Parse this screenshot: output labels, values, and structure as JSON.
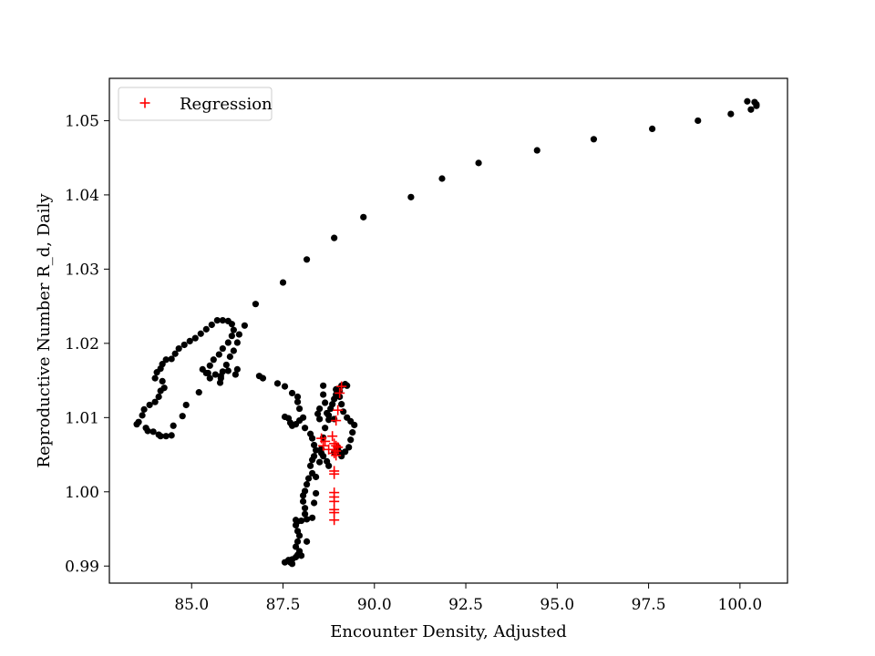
{
  "chart_data": {
    "type": "scatter",
    "xlabel": "Encounter Density, Adjusted",
    "ylabel": "Reproductive Number R_d, Daily",
    "xlim": [
      82.75,
      101.3
    ],
    "ylim": [
      0.9877,
      1.0557
    ],
    "x_ticks": [
      85.0,
      87.5,
      90.0,
      92.5,
      95.0,
      97.5,
      100.0
    ],
    "x_tick_labels": [
      "85.0",
      "87.5",
      "90.0",
      "92.5",
      "95.0",
      "97.5",
      "100.0"
    ],
    "y_ticks": [
      0.99,
      1.0,
      1.01,
      1.02,
      1.03,
      1.04,
      1.05
    ],
    "y_tick_labels": [
      "0.99",
      "1.00",
      "1.01",
      "1.02",
      "1.03",
      "1.04",
      "1.05"
    ],
    "grid": false,
    "legend": {
      "position": "top-left",
      "entries": [
        "Regression"
      ]
    },
    "series": [
      {
        "marker": "dot",
        "color": "#000000",
        "points": [
          [
            100.4,
            1.0525
          ],
          [
            100.2,
            1.0526
          ],
          [
            100.45,
            1.0522
          ],
          [
            100.3,
            1.0515
          ],
          [
            100.45,
            1.052
          ],
          [
            99.75,
            1.0509
          ],
          [
            98.85,
            1.05
          ],
          [
            97.6,
            1.0489
          ],
          [
            96.0,
            1.0475
          ],
          [
            94.45,
            1.046
          ],
          [
            92.85,
            1.0443
          ],
          [
            91.85,
            1.0422
          ],
          [
            91.0,
            1.0397
          ],
          [
            89.7,
            1.037
          ],
          [
            88.9,
            1.0342
          ],
          [
            88.15,
            1.0313
          ],
          [
            87.5,
            1.0282
          ],
          [
            86.75,
            1.0253
          ],
          [
            86.45,
            1.0224
          ],
          [
            86.3,
            1.0212
          ],
          [
            86.25,
            1.0201
          ],
          [
            86.15,
            1.019
          ],
          [
            86.05,
            1.0182
          ],
          [
            85.95,
            1.0171
          ],
          [
            85.85,
            1.0162
          ],
          [
            85.8,
            1.0156
          ],
          [
            85.78,
            1.0147
          ],
          [
            85.5,
            1.0153
          ],
          [
            85.4,
            1.016
          ],
          [
            85.3,
            1.0165
          ],
          [
            85.5,
            1.017
          ],
          [
            85.6,
            1.0178
          ],
          [
            85.75,
            1.0185
          ],
          [
            85.85,
            1.0193
          ],
          [
            86.0,
            1.0201
          ],
          [
            86.1,
            1.021
          ],
          [
            86.15,
            1.0218
          ],
          [
            86.1,
            1.0226
          ],
          [
            86.0,
            1.023
          ],
          [
            85.85,
            1.0231
          ],
          [
            85.7,
            1.0231
          ],
          [
            85.55,
            1.0225
          ],
          [
            85.4,
            1.0219
          ],
          [
            85.25,
            1.0213
          ],
          [
            85.1,
            1.0207
          ],
          [
            84.95,
            1.0203
          ],
          [
            84.8,
            1.0198
          ],
          [
            84.65,
            1.0193
          ],
          [
            84.55,
            1.0186
          ],
          [
            84.45,
            1.0179
          ],
          [
            84.3,
            1.0178
          ],
          [
            84.2,
            1.0172
          ],
          [
            84.15,
            1.0166
          ],
          [
            84.05,
            1.0161
          ],
          [
            84.0,
            1.0153
          ],
          [
            84.2,
            1.0149
          ],
          [
            84.25,
            1.014
          ],
          [
            84.15,
            1.0136
          ],
          [
            84.1,
            1.0128
          ],
          [
            84.0,
            1.0121
          ],
          [
            83.85,
            1.0117
          ],
          [
            83.7,
            1.0111
          ],
          [
            83.65,
            1.0103
          ],
          [
            83.55,
            1.0094
          ],
          [
            83.5,
            1.0091
          ],
          [
            83.75,
            1.0086
          ],
          [
            83.8,
            1.0082
          ],
          [
            83.95,
            1.0081
          ],
          [
            84.1,
            1.0077
          ],
          [
            84.15,
            1.0075
          ],
          [
            84.3,
            1.0075
          ],
          [
            84.45,
            1.0076
          ],
          [
            84.5,
            1.0089
          ],
          [
            84.75,
            1.0102
          ],
          [
            84.85,
            1.0117
          ],
          [
            85.2,
            1.0134
          ],
          [
            85.45,
            1.016
          ],
          [
            85.65,
            1.0158
          ],
          [
            85.8,
            1.0153
          ],
          [
            86.0,
            1.0163
          ],
          [
            86.2,
            1.0158
          ],
          [
            86.25,
            1.0165
          ],
          [
            86.95,
            1.0153
          ],
          [
            86.85,
            1.0156
          ],
          [
            87.35,
            1.0146
          ],
          [
            87.55,
            1.0142
          ],
          [
            87.75,
            1.0133
          ],
          [
            87.9,
            1.0128
          ],
          [
            87.9,
            1.0121
          ],
          [
            87.95,
            1.0112
          ],
          [
            88.05,
            1.01
          ],
          [
            87.95,
            1.0096
          ],
          [
            87.85,
            1.0091
          ],
          [
            87.7,
            1.0093
          ],
          [
            87.65,
            1.0099
          ],
          [
            87.55,
            1.0101
          ],
          [
            87.75,
            1.0089
          ],
          [
            88.1,
            1.0086
          ],
          [
            88.25,
            1.0078
          ],
          [
            88.3,
            1.0072
          ],
          [
            88.35,
            1.0063
          ],
          [
            88.4,
            1.0056
          ],
          [
            88.35,
            1.0048
          ],
          [
            88.3,
            1.0043
          ],
          [
            88.25,
            1.0035
          ],
          [
            88.3,
            1.0025
          ],
          [
            88.2,
            1.0018
          ],
          [
            88.15,
            1.001
          ],
          [
            88.1,
            1.0001
          ],
          [
            88.05,
            0.9995
          ],
          [
            88.05,
            0.9987
          ],
          [
            88.1,
            0.9978
          ],
          [
            88.1,
            0.997
          ],
          [
            88.15,
            0.9963
          ],
          [
            88.0,
            0.9961
          ],
          [
            87.9,
            0.996
          ],
          [
            87.85,
            0.9962
          ],
          [
            87.85,
            0.9955
          ],
          [
            87.9,
            0.9947
          ],
          [
            87.95,
            0.9941
          ],
          [
            87.9,
            0.9933
          ],
          [
            87.85,
            0.9926
          ],
          [
            87.95,
            0.992
          ],
          [
            88.0,
            0.9914
          ],
          [
            87.85,
            0.9912
          ],
          [
            87.75,
            0.9909
          ],
          [
            87.7,
            0.9905
          ],
          [
            87.75,
            0.9903
          ],
          [
            87.65,
            0.9908
          ],
          [
            87.55,
            0.9905
          ],
          [
            87.9,
            0.9915
          ],
          [
            88.15,
            0.9933
          ],
          [
            88.3,
            0.9965
          ],
          [
            88.35,
            0.9985
          ],
          [
            88.4,
            0.9998
          ],
          [
            88.4,
            1.002
          ],
          [
            88.5,
            1.004
          ],
          [
            88.55,
            1.0058
          ],
          [
            88.6,
            1.0073
          ],
          [
            88.65,
            1.0086
          ],
          [
            88.75,
            1.0097
          ],
          [
            88.7,
            1.0106
          ],
          [
            88.65,
            1.012
          ],
          [
            88.6,
            1.0131
          ],
          [
            88.6,
            1.0143
          ],
          [
            88.5,
            1.0112
          ],
          [
            88.45,
            1.0105
          ],
          [
            88.5,
            1.0098
          ],
          [
            88.55,
            1.0052
          ],
          [
            88.6,
            1.0048
          ],
          [
            88.7,
            1.0041
          ],
          [
            88.75,
            1.0035
          ],
          [
            88.9,
            1.0053
          ],
          [
            89.0,
            1.0059
          ],
          [
            89.05,
            1.0053
          ],
          [
            89.1,
            1.0048
          ],
          [
            89.2,
            1.0054
          ],
          [
            89.3,
            1.006
          ],
          [
            89.35,
            1.007
          ],
          [
            89.4,
            1.008
          ],
          [
            89.45,
            1.009
          ],
          [
            89.35,
            1.0095
          ],
          [
            89.25,
            1.01
          ],
          [
            89.15,
            1.0108
          ],
          [
            89.1,
            1.0118
          ],
          [
            89.05,
            1.0128
          ],
          [
            89.05,
            1.0136
          ],
          [
            89.1,
            1.0143
          ],
          [
            89.2,
            1.0145
          ],
          [
            89.25,
            1.0143
          ],
          [
            88.95,
            1.0138
          ],
          [
            88.95,
            1.0131
          ],
          [
            88.9,
            1.0125
          ],
          [
            88.85,
            1.0118
          ],
          [
            88.8,
            1.0112
          ],
          [
            88.75,
            1.0103
          ],
          [
            88.9,
            1.0098
          ],
          [
            89.0,
            1.006
          ]
        ]
      },
      {
        "name": "Regression",
        "marker": "plus",
        "color": "#ff0000",
        "points": [
          [
            89.1,
            1.0142
          ],
          [
            89.05,
            1.0133
          ],
          [
            89.0,
            1.011
          ],
          [
            88.95,
            1.0096
          ],
          [
            88.85,
            1.0075
          ],
          [
            88.9,
            1.0065
          ],
          [
            88.95,
            1.0062
          ],
          [
            89.0,
            1.006
          ],
          [
            88.95,
            1.0055
          ],
          [
            88.9,
            1.0052
          ],
          [
            88.95,
            1.0049
          ],
          [
            88.9,
            1.0028
          ],
          [
            88.9,
            1.0024
          ],
          [
            88.9,
            0.9999
          ],
          [
            88.9,
            0.9993
          ],
          [
            88.9,
            0.9987
          ],
          [
            88.9,
            0.9976
          ],
          [
            88.9,
            0.9972
          ],
          [
            88.9,
            0.9962
          ],
          [
            88.65,
            1.0068
          ],
          [
            88.55,
            1.0072
          ],
          [
            88.6,
            1.0062
          ],
          [
            88.75,
            1.0057
          ]
        ]
      }
    ]
  },
  "colors": {
    "axes": "#000000",
    "background": "#ffffff",
    "legend_border": "#cccccc"
  }
}
